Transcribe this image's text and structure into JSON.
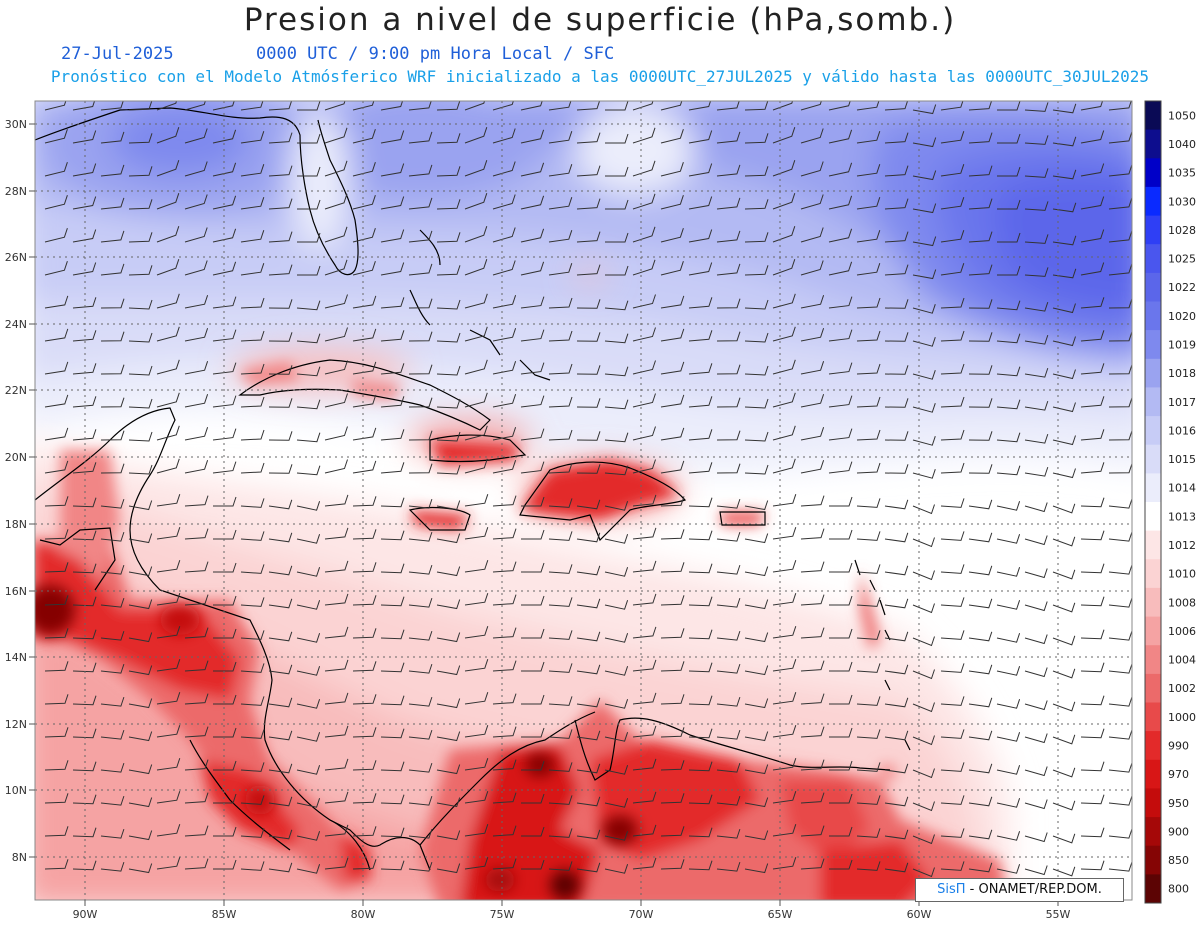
{
  "header": {
    "title": "Presion a nivel de superficie (hPa,somb.)",
    "date": "27-Jul-2025",
    "time_line": "0000 UTC / 9:00 pm Hora Local / SFC",
    "model_line": "Pronóstico con el Modelo Atmósferico WRF inicializado a las 0000UTC_27JUL2025 y válido hasta las  0000UTC_30JUL2025"
  },
  "map": {
    "lat_labels": [
      "30N",
      "28N",
      "26N",
      "24N",
      "22N",
      "20N",
      "18N",
      "16N",
      "14N",
      "12N",
      "10N",
      "8N"
    ],
    "lon_labels": [
      "90W",
      "85W",
      "80W",
      "75W",
      "70W",
      "65W",
      "60W",
      "55W"
    ],
    "overlay": "wind barbs",
    "grid": "dotted"
  },
  "colorbar": {
    "unit": "hPa",
    "levels": [
      "1050",
      "1040",
      "1035",
      "1030",
      "1028",
      "1025",
      "1022",
      "1020",
      "1019",
      "1018",
      "1017",
      "1016",
      "1015",
      "1014",
      "1013",
      "1012",
      "1010",
      "1008",
      "1006",
      "1004",
      "1002",
      "1000",
      "990",
      "970",
      "950",
      "900",
      "850",
      "800"
    ],
    "colors": [
      "#0a0a55",
      "#0d0d8e",
      "#0000c8",
      "#0a2aff",
      "#2f3ff5",
      "#4a56ee",
      "#5b66ea",
      "#6a76ec",
      "#7e89ee",
      "#9aa3f0",
      "#b3baf3",
      "#c7ccf6",
      "#d9dcf8",
      "#ebedfb",
      "#ffffff",
      "#fde6e6",
      "#fbd3d3",
      "#f8bcbc",
      "#f5a3a3",
      "#f18686",
      "#ec6a6a",
      "#e84a4a",
      "#e32a2a",
      "#d81616",
      "#c40c0c",
      "#a50808",
      "#850505",
      "#5c0404"
    ]
  },
  "credit": {
    "logo": "SisΠ",
    "text": " - ONAMET/REP.DOM."
  }
}
